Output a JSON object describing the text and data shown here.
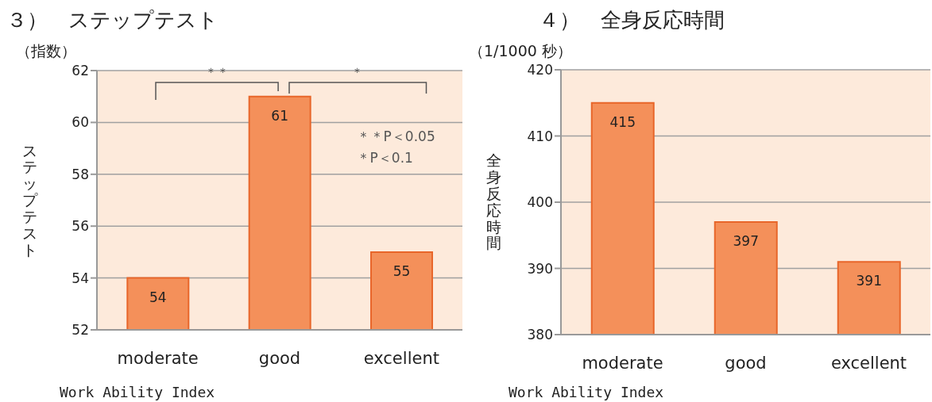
{
  "chart_data": [
    {
      "type": "bar",
      "title": "３）　ステップテスト",
      "subtitle": "（指数）",
      "ylabel": "ステップテスト",
      "xlabel": "Work Ability Index",
      "categories": [
        "moderate",
        "good",
        "excellent"
      ],
      "values": [
        54,
        61,
        55
      ],
      "color": "#f4905a",
      "ylim": [
        52,
        62
      ],
      "yticks": [
        52,
        54,
        56,
        58,
        60,
        62
      ],
      "grid": "y",
      "data_labels": true,
      "annotations": [
        "＊＊",
        "＊",
        "＊＊P＜0.05",
        "＊P＜0.1"
      ]
    },
    {
      "type": "bar",
      "title": "４）　全身反応時間",
      "subtitle": "（1/1000 秒）",
      "ylabel": "全身反応時間",
      "xlabel": "Work Ability Index",
      "categories": [
        "moderate",
        "good",
        "excellent"
      ],
      "values": [
        415,
        397,
        391
      ],
      "color": "#f4905a",
      "ylim": [
        380,
        420
      ],
      "yticks": [
        380,
        390,
        400,
        410,
        420
      ],
      "grid": "y",
      "data_labels": true
    }
  ]
}
